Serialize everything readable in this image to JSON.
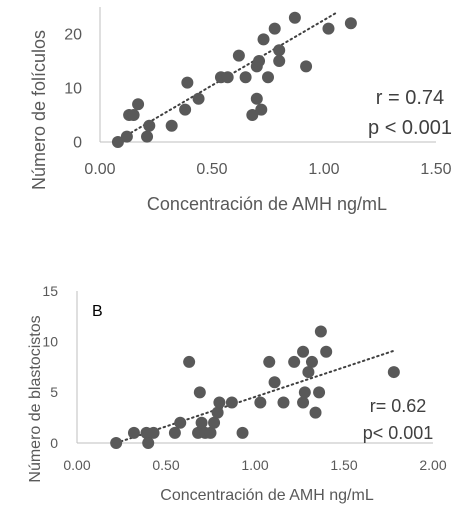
{
  "chart_data": [
    {
      "type": "scatter",
      "panel_label": "",
      "xlabel": "Concentración de AMH ng/mL",
      "ylabel": "Número de folículos",
      "xlim": [
        0,
        1.5
      ],
      "ylim": [
        0,
        25
      ],
      "xticks": [
        "0.00",
        "0.50",
        "1.00",
        "1.50"
      ],
      "yticks": [
        "0",
        "10",
        "20"
      ],
      "grid": false,
      "trendline": "linear, dotted",
      "annotation_r": "r = 0.74",
      "annotation_p": "p < 0.001",
      "marker_color": "#595959",
      "trend_color": "#404040",
      "points": [
        [
          0.08,
          0
        ],
        [
          0.12,
          1
        ],
        [
          0.13,
          5
        ],
        [
          0.15,
          5
        ],
        [
          0.17,
          7
        ],
        [
          0.21,
          1
        ],
        [
          0.22,
          3
        ],
        [
          0.32,
          3
        ],
        [
          0.38,
          6
        ],
        [
          0.39,
          11
        ],
        [
          0.44,
          8
        ],
        [
          0.54,
          12
        ],
        [
          0.57,
          12
        ],
        [
          0.62,
          16
        ],
        [
          0.65,
          12
        ],
        [
          0.68,
          5
        ],
        [
          0.7,
          8
        ],
        [
          0.7,
          14
        ],
        [
          0.71,
          15
        ],
        [
          0.72,
          6
        ],
        [
          0.73,
          19
        ],
        [
          0.75,
          12
        ],
        [
          0.78,
          21
        ],
        [
          0.8,
          17
        ],
        [
          0.8,
          15
        ],
        [
          0.87,
          23
        ],
        [
          0.92,
          14
        ],
        [
          1.02,
          21
        ],
        [
          1.12,
          22
        ]
      ],
      "trend": [
        [
          0.08,
          0.3
        ],
        [
          1.05,
          23.8
        ]
      ]
    },
    {
      "type": "scatter",
      "panel_label": "B",
      "xlabel": "Concentración de AMH ng/mL",
      "ylabel": "Número de blastocistos",
      "xlim": [
        0,
        2
      ],
      "ylim": [
        0,
        15
      ],
      "xticks": [
        "0.00",
        "0.50",
        "1.00",
        "1.50",
        "2.00"
      ],
      "yticks": [
        "0",
        "5",
        "10",
        "15"
      ],
      "grid": false,
      "trendline": "linear, dotted",
      "annotation_r": "r= 0.62",
      "annotation_p": "p< 0.001",
      "marker_color": "#595959",
      "trend_color": "#404040",
      "points": [
        [
          0.22,
          0
        ],
        [
          0.32,
          1
        ],
        [
          0.39,
          1
        ],
        [
          0.4,
          0
        ],
        [
          0.43,
          1
        ],
        [
          0.55,
          1
        ],
        [
          0.58,
          2
        ],
        [
          0.63,
          8
        ],
        [
          0.68,
          1
        ],
        [
          0.69,
          5
        ],
        [
          0.7,
          2
        ],
        [
          0.72,
          1
        ],
        [
          0.75,
          1
        ],
        [
          0.77,
          2
        ],
        [
          0.79,
          3
        ],
        [
          0.8,
          4
        ],
        [
          0.87,
          4
        ],
        [
          0.93,
          1
        ],
        [
          1.03,
          4
        ],
        [
          1.08,
          8
        ],
        [
          1.11,
          6
        ],
        [
          1.16,
          4
        ],
        [
          1.22,
          8
        ],
        [
          1.27,
          4
        ],
        [
          1.27,
          9
        ],
        [
          1.28,
          5
        ],
        [
          1.3,
          7
        ],
        [
          1.32,
          8
        ],
        [
          1.34,
          3
        ],
        [
          1.36,
          5
        ],
        [
          1.37,
          11
        ],
        [
          1.4,
          9
        ],
        [
          1.78,
          7
        ]
      ],
      "trend": [
        [
          0.22,
          0.0
        ],
        [
          1.78,
          9.1
        ]
      ]
    }
  ]
}
